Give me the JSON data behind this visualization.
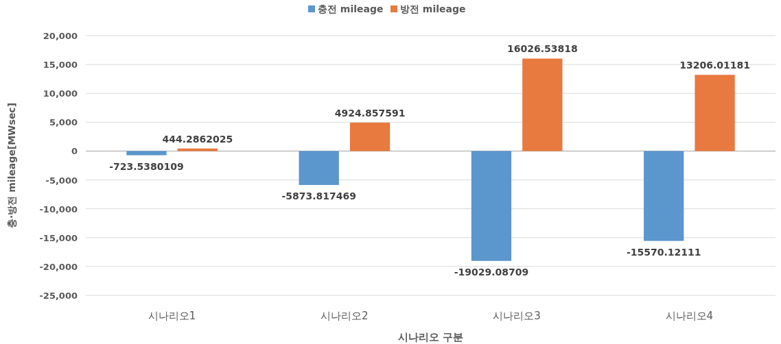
{
  "chart_data": {
    "type": "bar",
    "xlabel": "시나리오 구분",
    "ylabel": "충·방전 mileage[MWsec]",
    "categories": [
      "시나리오1",
      "시나리오2",
      "시나리오3",
      "시나리오4"
    ],
    "series": [
      {
        "name": "충전 mileage",
        "color": "#5b96cc",
        "values": [
          -723.5380109,
          -5873.817469,
          -19029.08709,
          -15570.12111
        ]
      },
      {
        "name": "방전 mileage",
        "color": "#e8793f",
        "values": [
          444.2862025,
          4924.857591,
          16026.53818,
          13206.01181
        ]
      }
    ],
    "ylim": [
      -25000,
      20000
    ],
    "yticks": [
      {
        "value": -25000,
        "label": "-25,000"
      },
      {
        "value": -20000,
        "label": "-20,000"
      },
      {
        "value": -15000,
        "label": "-15,000"
      },
      {
        "value": -10000,
        "label": "-10,000"
      },
      {
        "value": -5000,
        "label": "-5,000"
      },
      0,
      {
        "value": 5000,
        "label": "5,000"
      },
      {
        "value": 10000,
        "label": "10,000"
      },
      {
        "value": 15000,
        "label": "15,000"
      },
      {
        "value": 20000,
        "label": "20,000"
      }
    ],
    "grid": "y",
    "legend": "top",
    "data_labels": true
  }
}
